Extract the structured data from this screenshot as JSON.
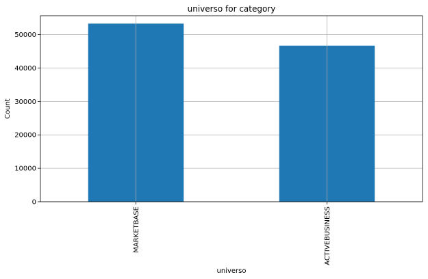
{
  "chart_data": {
    "type": "bar",
    "title": "universo for category",
    "xlabel": "universo",
    "ylabel": "Count",
    "categories": [
      "MARKETBASE",
      "ACTIVEBUSINESS"
    ],
    "values": [
      53300,
      46700
    ],
    "ylim": [
      0,
      55650
    ],
    "yticks": [
      0,
      10000,
      20000,
      30000,
      40000,
      50000
    ],
    "grid": true,
    "bar_color": "#1f77b4"
  }
}
